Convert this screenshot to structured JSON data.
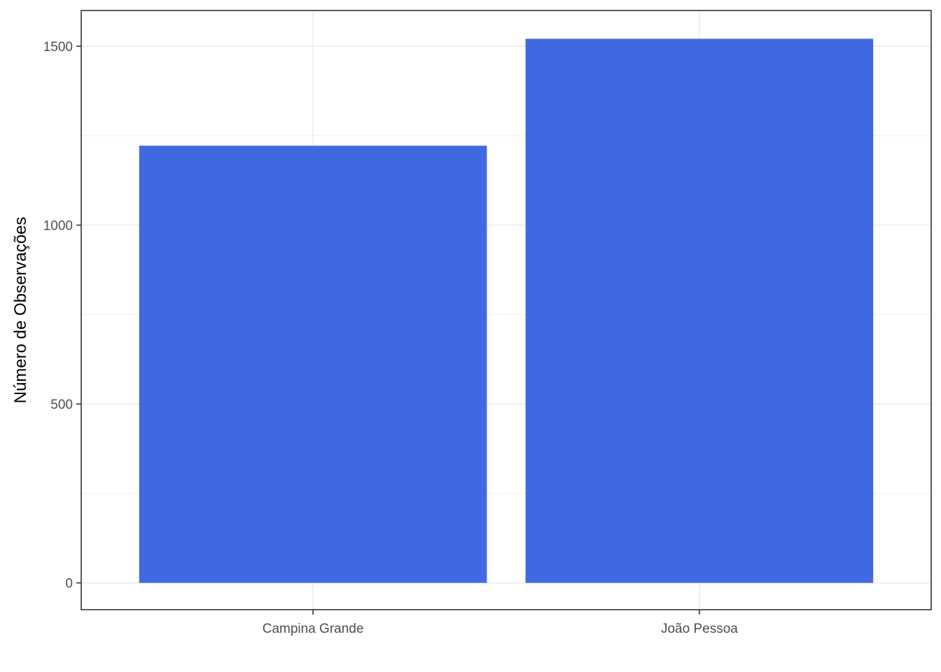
{
  "chart_data": {
    "type": "bar",
    "categories": [
      "Campina Grande",
      "João Pessoa"
    ],
    "values": [
      1222,
      1521
    ],
    "xlabel": "",
    "ylabel": "Número de Observações",
    "ylim": [
      -75,
      1600
    ],
    "y_ticks": [
      0,
      500,
      1000,
      1500
    ],
    "y_minor_grid": [
      250,
      750,
      1250
    ],
    "grid": true,
    "legend": "none",
    "colors": {
      "bar": "#4169E1",
      "grid": "#ebebeb",
      "border": "#333333"
    }
  }
}
